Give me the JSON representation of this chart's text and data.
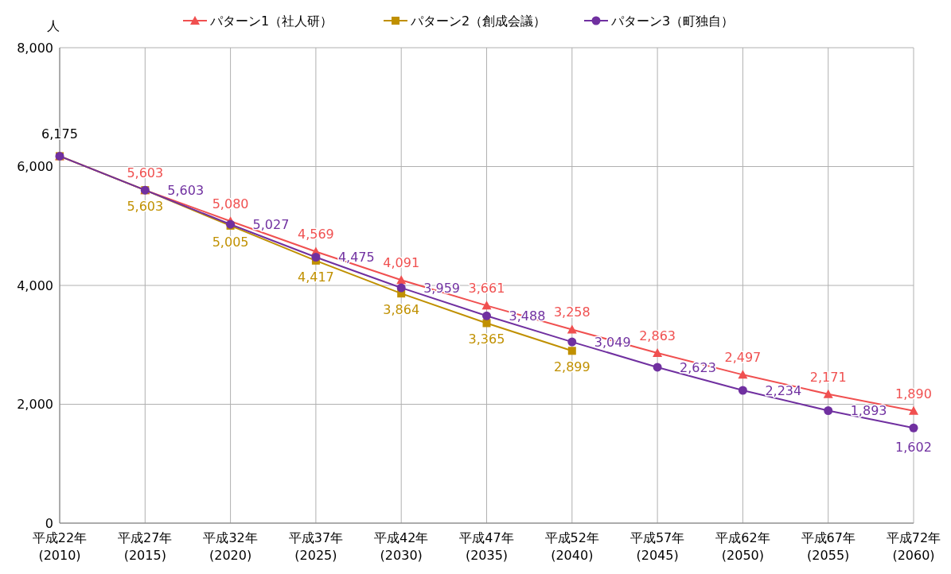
{
  "chart_data": {
    "type": "line",
    "ylabel": "人",
    "categories": [
      "平成22年\n(2010)",
      "平成27年\n(2015)",
      "平成32年\n(2020)",
      "平成37年\n(2025)",
      "平成42年\n(2030)",
      "平成47年\n(2035)",
      "平成52年\n(2040)",
      "平成57年\n(2045)",
      "平成62年\n(2050)",
      "平成67年\n(2055)",
      "平成72年\n(2060)"
    ],
    "series": [
      {
        "name": "パターン1（社人研）",
        "color": "#f05050",
        "marker": "triangle",
        "values": [
          6175,
          5603,
          5080,
          4569,
          4091,
          3661,
          3258,
          2863,
          2497,
          2171,
          1890
        ],
        "value_labels": [
          null,
          "5,603",
          "5,080",
          "4,569",
          "4,091",
          "3,661",
          "3,258",
          "2,863",
          "2,497",
          "2,171",
          "1,890"
        ]
      },
      {
        "name": "パターン2（創成会議）",
        "color": "#c09000",
        "marker": "square",
        "values": [
          6175,
          5603,
          5005,
          4417,
          3864,
          3365,
          2899,
          null,
          null,
          null,
          null
        ],
        "value_labels": [
          null,
          "5,603",
          "5,005",
          "4,417",
          "3,864",
          "3,365",
          "2,899",
          null,
          null,
          null,
          null
        ]
      },
      {
        "name": "パターン3（町独自）",
        "color": "#7030a0",
        "marker": "circle",
        "values": [
          6175,
          5603,
          5027,
          4475,
          3959,
          3488,
          3049,
          2623,
          2234,
          1893,
          1602
        ],
        "value_labels": [
          null,
          "5,603",
          "5,027",
          "4,475",
          "3,959",
          "3,488",
          "3,049",
          "2,623",
          "2,234",
          "1,893",
          "1,602"
        ]
      }
    ],
    "annotations": [
      {
        "text": "6,175",
        "x": "平成22年\n(2010)",
        "y": 6175
      }
    ],
    "ylim": [
      0,
      8000
    ],
    "yticks": [
      0,
      {
        "value": 2000,
        "label": "2,000"
      },
      {
        "value": 4000,
        "label": "4,000"
      },
      {
        "value": 6000,
        "label": "6,000"
      },
      {
        "value": 8000,
        "label": "8,000"
      }
    ],
    "grid": true,
    "legend": "top"
  }
}
